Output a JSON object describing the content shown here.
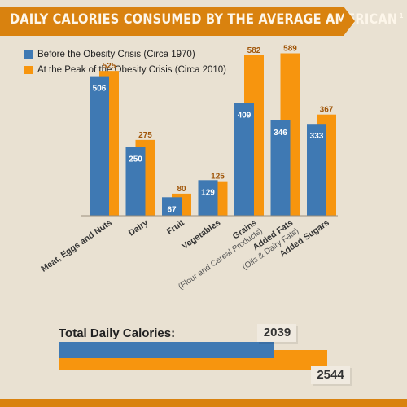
{
  "header": {
    "title": "DAILY CALORIES CONSUMED BY THE AVERAGE AMERICAN",
    "footnote_mark": "1"
  },
  "colors": {
    "before": "#3f79b3",
    "peak": "#f7950e",
    "banner": "#d9820f",
    "background": "#e9e1d2"
  },
  "chart_data": {
    "type": "bar",
    "categories": [
      "Meat, Eggs and Nuts",
      "Dairy",
      "Fruit",
      "Vegetables",
      "Grains",
      "Added Fats",
      "Added Sugars"
    ],
    "category_sublabels": [
      "",
      "",
      "",
      "",
      "(Flour and Cereal Products)",
      "(Oils & Dairy Fats)",
      ""
    ],
    "series": [
      {
        "name": "Before the Obesity Crisis (Circa 1970)",
        "values": [
          506,
          250,
          67,
          129,
          409,
          346,
          333
        ]
      },
      {
        "name": "At the Peak of the Obesity Crisis (Circa 2010)",
        "values": [
          525,
          275,
          80,
          125,
          582,
          589,
          367
        ]
      }
    ],
    "ylim": [
      0,
      620
    ],
    "grid": false,
    "legend": "top-left"
  },
  "totals": {
    "label": "Total Daily Calories:",
    "before": 2039,
    "peak": 2544,
    "before_label": "2039",
    "peak_label": "2544"
  }
}
